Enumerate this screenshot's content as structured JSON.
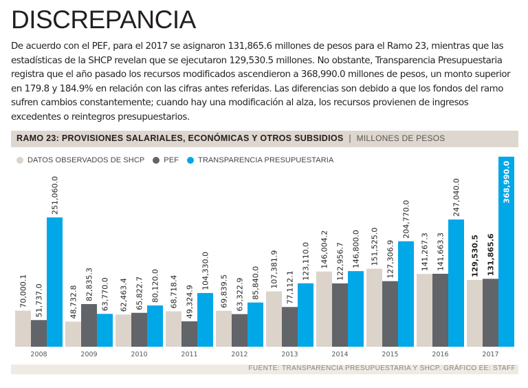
{
  "headline": "DISCREPANCIA",
  "intro": "De acuerdo con el PEF, para el 2017 se asignaron 131,865.6 millones de pesos para el Ramo 23, mientras que las estadísticas de la SHCP revelan que se ejecutaron 129,530.5 millones. No obstante, Transparencia Presupuestaria registra que el año pasado los recursos modificados ascendieron a 368,990.0 millones de pesos, un monto superior en 179.8 y 184.9% en relación con las cifras antes referidas. Las diferencias son debido a que los fondos del ramo sufren cambios constantemente; cuando hay una modificación al alza, los recursos provienen de ingresos excedentes o reintegros presupuestarios.",
  "chart_data": {
    "type": "bar",
    "title": "RAMO 23: PROVISIONES SALARIALES, ECONÓMICAS Y OTROS SUBSIDIOS",
    "separator": "|",
    "subtitle": "MILLONES DE PESOS",
    "categories": [
      "2008",
      "2009",
      "2010",
      "2011",
      "2012",
      "2013",
      "2014",
      "2015",
      "2016",
      "2017"
    ],
    "series": [
      {
        "name": "DATOS OBSERVADOS DE SHCP",
        "color": "#dcd3cb",
        "values": [
          70000.1,
          48732.8,
          62463.4,
          68718.4,
          69839.5,
          107381.9,
          146004.2,
          151525.0,
          141267.3,
          129530.5
        ],
        "labels": [
          "70,000.1",
          "48,732.8",
          "62,463.4",
          "68,718.4",
          "69,839.5",
          "107,381.9",
          "146,004.2",
          "151,525.0",
          "141,267.3",
          "129,530.5"
        ]
      },
      {
        "name": "PEF",
        "color": "#616468",
        "values": [
          51737.0,
          82835.3,
          65822.7,
          49324.9,
          63322.9,
          77112.1,
          122956.7,
          127306.9,
          141663.3,
          131865.6
        ],
        "labels": [
          "51,737.0",
          "82,835.3",
          "65,822.7",
          "49,324.9",
          "63,322.9",
          "77,112.1",
          "122,956.7",
          "127,306.9",
          "141,663.3",
          "131,865.6"
        ]
      },
      {
        "name": "TRANSPARENCIA PRESUPUESTARIA",
        "color": "#00a8e8",
        "values": [
          251060.0,
          63770.0,
          80120.0,
          104330.0,
          85840.0,
          123110.0,
          146800.0,
          204770.0,
          247040.0,
          368990.0
        ],
        "labels": [
          "251,060.0",
          "63,770.0",
          "80,120.0",
          "104,330.0",
          "85,840.0",
          "123,110.0",
          "146,800.0",
          "204,770.0",
          "247,040.0",
          "368,990.0"
        ]
      }
    ],
    "ylim": [
      0,
      370000
    ],
    "grid": false,
    "legend_position": "top-left",
    "source": "FUENTE: TRANSPARENCIA PRESUPUESTARIA Y SHCP.  GRÁFICO EE: STAFF"
  }
}
